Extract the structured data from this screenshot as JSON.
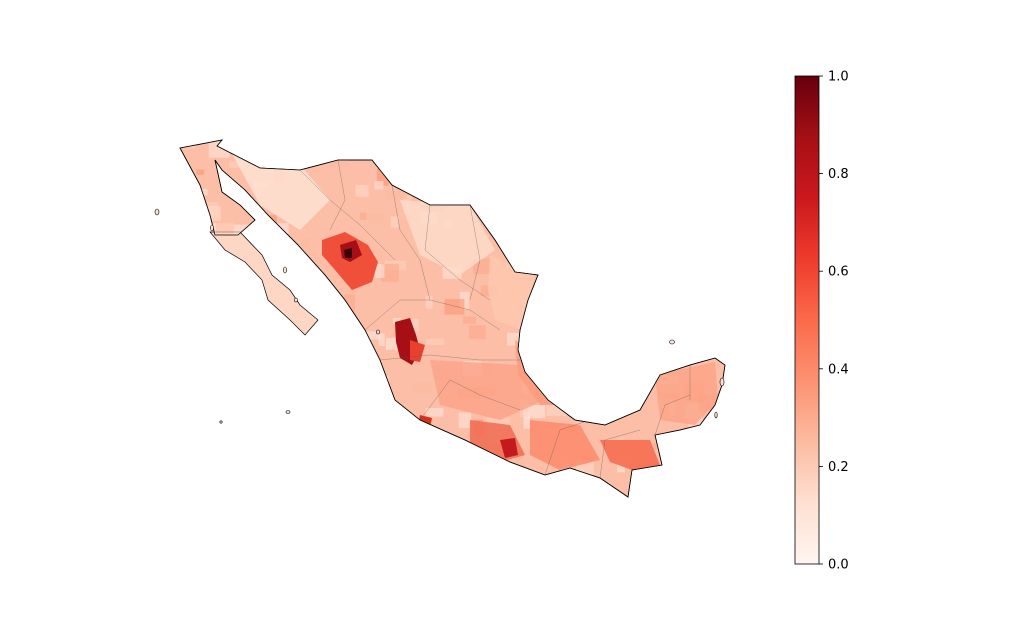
{
  "map": {
    "type": "choropleth",
    "region": "Mexico",
    "units": "municipalities",
    "colormap": "Reds",
    "border_color": "#000000",
    "highlights": [
      {
        "area": "Chihuahua highlands",
        "level": 0.95
      },
      {
        "area": "Chihuahua surroundings",
        "level": 0.6
      },
      {
        "area": "Nayarit / Durango sierra",
        "level": 0.85
      },
      {
        "area": "Guerrero / Oaxaca coast",
        "level": 0.6
      },
      {
        "area": "Chiapas",
        "level": 0.45
      },
      {
        "area": "Yucatan peninsula",
        "level": 0.3
      }
    ]
  },
  "colorbar": {
    "min": 0.0,
    "max": 1.0,
    "ticks": [
      "0.0",
      "0.2",
      "0.4",
      "0.6",
      "0.8",
      "1.0"
    ],
    "colors": [
      "#fff5f0",
      "#fee0d2",
      "#fcbba1",
      "#fc9272",
      "#fb6a4a",
      "#ef3b2c",
      "#cb181d",
      "#a50f15",
      "#67000d"
    ]
  }
}
